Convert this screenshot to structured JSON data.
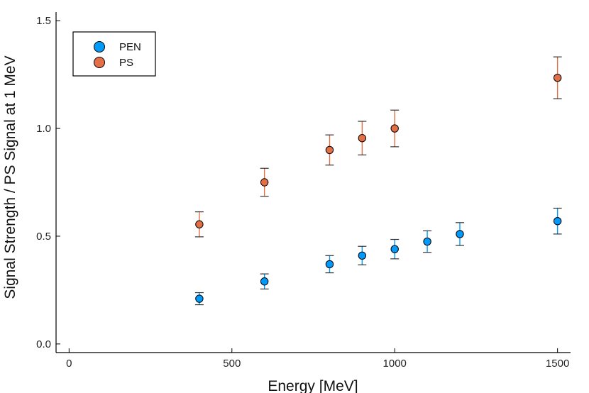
{
  "chart_data": {
    "type": "scatter",
    "title": "",
    "xlabel": "Energy [MeV]",
    "ylabel": "Signal Strength / PS Signal at 1 MeV",
    "xlim": [
      -40,
      1540
    ],
    "ylim": [
      -0.04,
      1.54
    ],
    "xticks": [
      0,
      500,
      1000,
      1500
    ],
    "xtick_labels": [
      "0",
      "500",
      "1000",
      "1500"
    ],
    "yticks": [
      0.0,
      0.5,
      1.0,
      1.5
    ],
    "ytick_labels": [
      "0.0",
      "0.5",
      "1.0",
      "1.5"
    ],
    "grid": false,
    "legend_position": "top-left",
    "series": [
      {
        "name": "PEN",
        "color": "#009AFA",
        "x": [
          400,
          600,
          800,
          900,
          1000,
          1100,
          1200,
          1500
        ],
        "y": [
          0.21,
          0.29,
          0.37,
          0.41,
          0.44,
          0.475,
          0.51,
          0.57
        ],
        "yerr": [
          0.028,
          0.035,
          0.04,
          0.043,
          0.045,
          0.05,
          0.053,
          0.06
        ]
      },
      {
        "name": "PS",
        "color": "#E36F47",
        "x": [
          400,
          600,
          800,
          900,
          1000,
          1500
        ],
        "y": [
          0.555,
          0.75,
          0.9,
          0.955,
          1.0,
          1.235
        ],
        "yerr": [
          0.058,
          0.065,
          0.07,
          0.078,
          0.085,
          0.097
        ]
      }
    ]
  }
}
